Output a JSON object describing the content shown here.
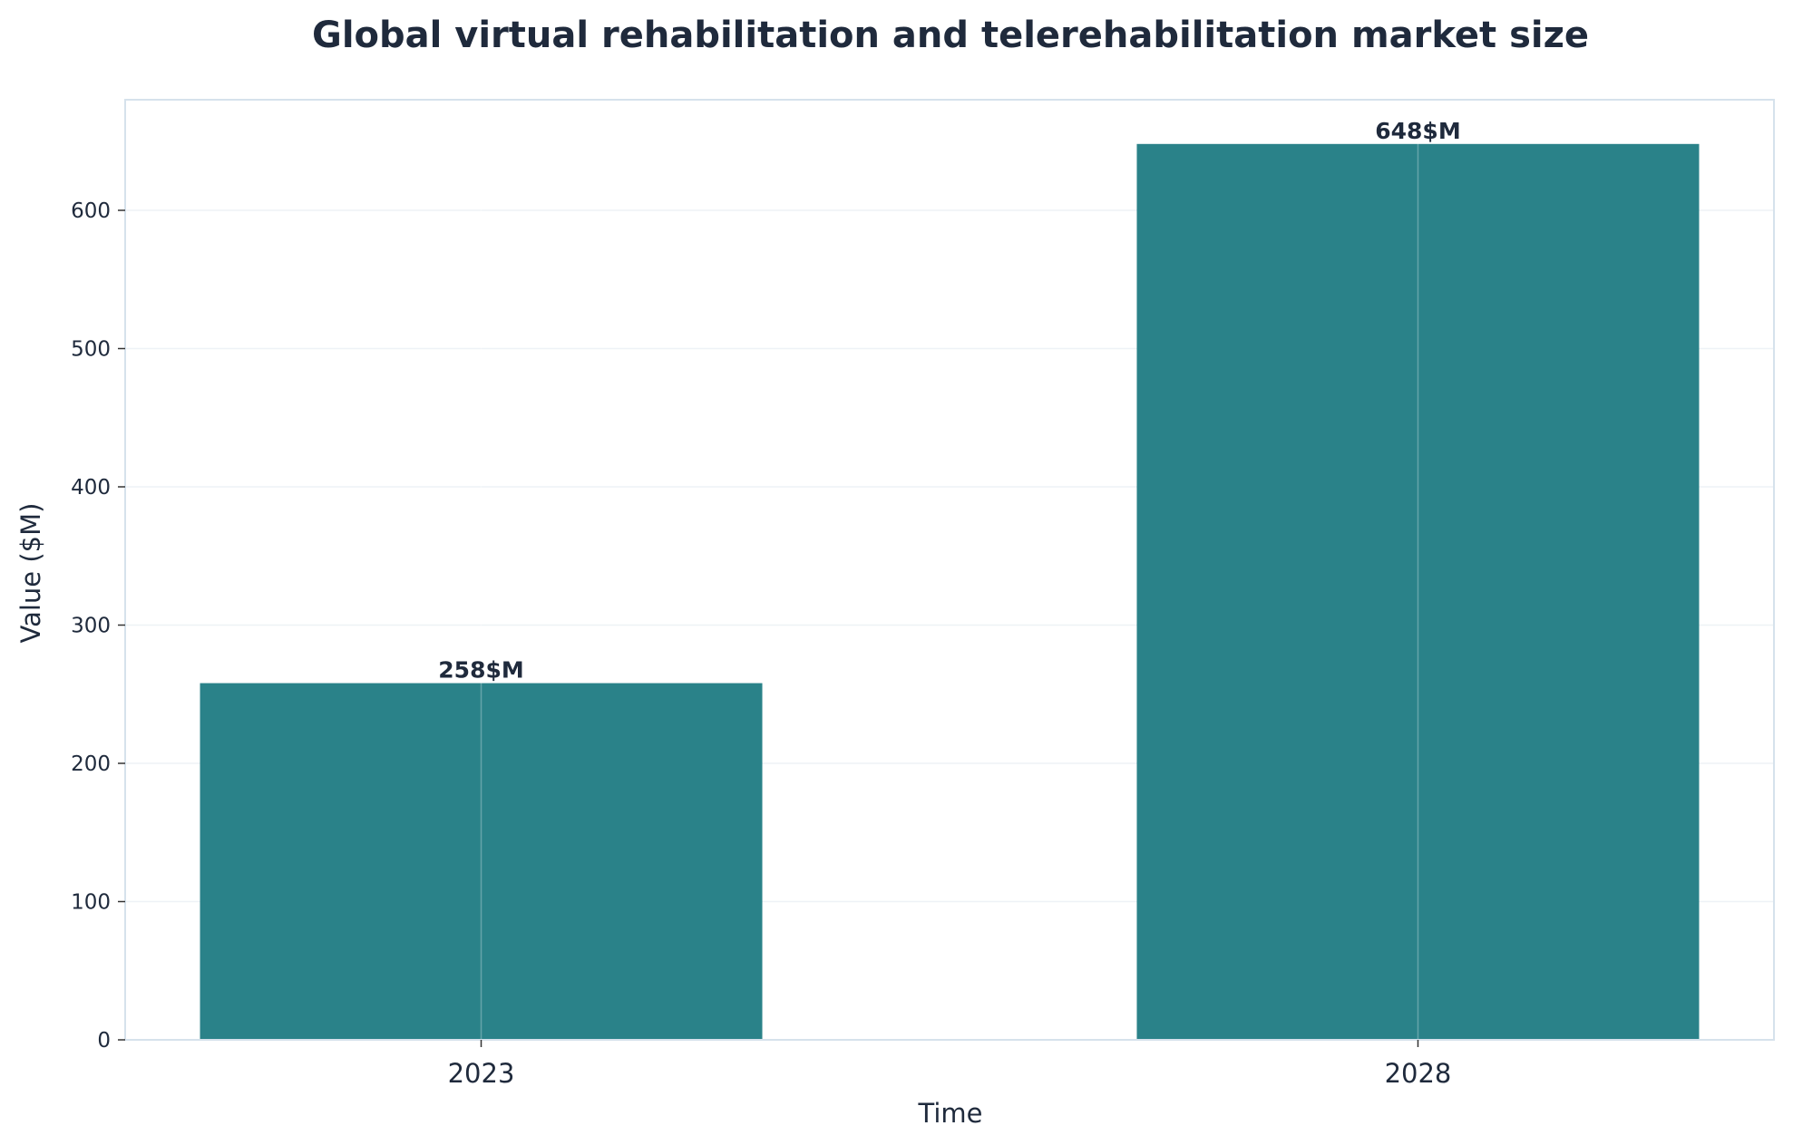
{
  "chart_data": {
    "type": "bar",
    "title": "Global virtual rehabilitation and telerehabilitation market size",
    "xlabel": "Time",
    "ylabel": "Value ($M)",
    "categories": [
      "2023",
      "2028"
    ],
    "values": [
      258,
      648
    ],
    "data_labels": [
      "258$M",
      "648$M"
    ],
    "ylim": [
      0,
      680
    ],
    "yticks": [
      0,
      100,
      200,
      300,
      400,
      500,
      600
    ],
    "grid": true,
    "legend": "none",
    "colors": {
      "bar": "#2a8289",
      "text": "#1f2a3c",
      "frame": "#d6e2ec",
      "grid": "#eef2f6"
    }
  }
}
